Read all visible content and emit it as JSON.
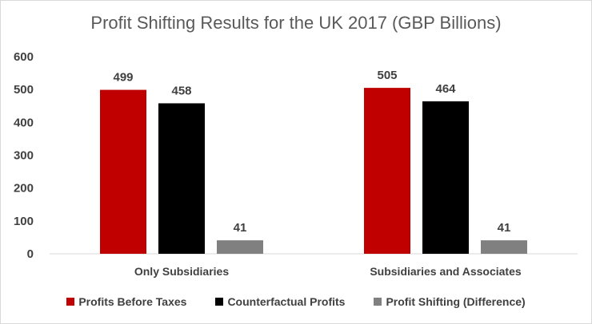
{
  "chart_data": {
    "type": "bar",
    "title": "Profit Shifting Results for the UK 2017 (GBP Billions)",
    "categories": [
      "Only Subsidiaries",
      "Subsidiaries and Associates"
    ],
    "series": [
      {
        "name": "Profits Before Taxes",
        "color": "#c00000",
        "values": [
          499,
          505
        ]
      },
      {
        "name": "Counterfactual Profits",
        "color": "#000000",
        "values": [
          458,
          464
        ]
      },
      {
        "name": "Profit Shifting (Difference)",
        "color": "#808080",
        "values": [
          41,
          41
        ]
      }
    ],
    "ylim": [
      0,
      600
    ],
    "yticks": [
      0,
      100,
      200,
      300,
      400,
      500,
      600
    ],
    "grid": false,
    "legend": "bottom",
    "data_labels": true
  }
}
